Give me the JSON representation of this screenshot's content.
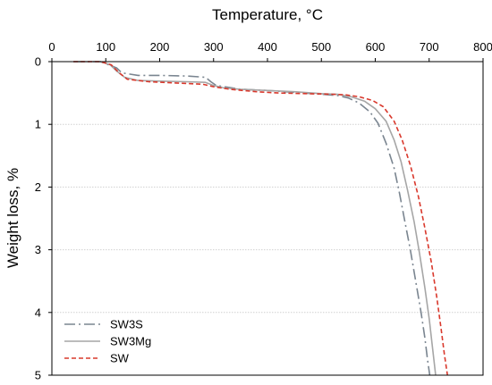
{
  "chart_data": {
    "type": "line",
    "xlabel": "Temperature, °C",
    "ylabel": "Weight loss, %",
    "xlim": [
      0,
      800
    ],
    "ylim": [
      0,
      5
    ],
    "y_inverted": true,
    "x_axis_position": "top",
    "xticks": [
      "0",
      "100",
      "200",
      "300",
      "400",
      "500",
      "600",
      "700",
      "800"
    ],
    "yticks": [
      "0",
      "1",
      "2",
      "3",
      "4",
      "5"
    ],
    "grid": "horizontal",
    "legend_position": "bottom-left",
    "series": [
      {
        "name": "SW3S",
        "color": "#7a8590",
        "style": "dash-dot",
        "x": [
          40,
          90,
          105,
          120,
          130,
          160,
          200,
          250,
          285,
          295,
          305,
          350,
          400,
          450,
          500,
          530,
          550,
          570,
          590,
          605,
          620,
          635,
          645,
          655,
          665,
          675,
          685,
          692,
          697,
          701
        ],
        "y": [
          0.0,
          0.0,
          0.05,
          0.1,
          0.18,
          0.22,
          0.22,
          0.23,
          0.25,
          0.32,
          0.38,
          0.44,
          0.46,
          0.49,
          0.52,
          0.54,
          0.58,
          0.66,
          0.8,
          0.98,
          1.3,
          1.7,
          2.1,
          2.55,
          3.0,
          3.5,
          4.0,
          4.4,
          4.75,
          5.0
        ]
      },
      {
        "name": "SW3Mg",
        "color": "#a6a6a6",
        "style": "solid",
        "x": [
          40,
          90,
          108,
          120,
          135,
          160,
          200,
          250,
          285,
          300,
          320,
          350,
          400,
          450,
          500,
          530,
          555,
          580,
          600,
          620,
          635,
          648,
          660,
          672,
          682,
          692,
          700,
          706,
          712
        ],
        "y": [
          0.0,
          0.0,
          0.05,
          0.15,
          0.25,
          0.3,
          0.31,
          0.32,
          0.33,
          0.38,
          0.42,
          0.44,
          0.46,
          0.48,
          0.51,
          0.52,
          0.56,
          0.63,
          0.75,
          0.95,
          1.25,
          1.6,
          2.05,
          2.55,
          3.05,
          3.6,
          4.1,
          4.55,
          5.0
        ]
      },
      {
        "name": "SW",
        "color": "#d9382c",
        "style": "dashed",
        "x": [
          40,
          90,
          110,
          125,
          140,
          180,
          230,
          280,
          300,
          330,
          380,
          420,
          470,
          520,
          545,
          570,
          595,
          615,
          635,
          650,
          665,
          680,
          692,
          704,
          714,
          722,
          728,
          734
        ],
        "y": [
          0.0,
          0.0,
          0.05,
          0.18,
          0.28,
          0.32,
          0.34,
          0.36,
          0.4,
          0.44,
          0.48,
          0.5,
          0.51,
          0.52,
          0.53,
          0.56,
          0.62,
          0.72,
          0.95,
          1.25,
          1.65,
          2.15,
          2.65,
          3.2,
          3.75,
          4.25,
          4.65,
          5.0
        ]
      }
    ]
  }
}
